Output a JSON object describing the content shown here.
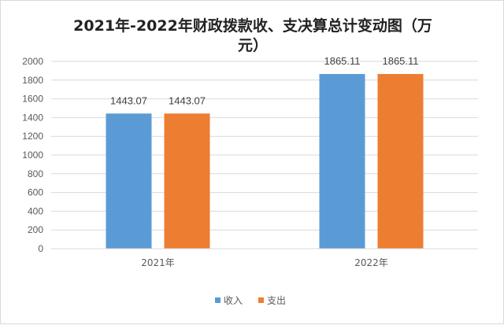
{
  "chart_data": {
    "type": "bar",
    "title_line1": "2021年-2022年财政拨款收、支决算总计变动图（万",
    "title_line2": "元）",
    "categories": [
      "2021年",
      "2022年"
    ],
    "series": [
      {
        "name": "收入",
        "values": [
          1443.07,
          1865.11
        ],
        "color": "#5B9BD5"
      },
      {
        "name": "支出",
        "values": [
          1443.07,
          1865.11
        ],
        "color": "#ED7D31"
      }
    ],
    "data_labels": [
      [
        "1443.07",
        "1865.11"
      ],
      [
        "1443.07",
        "1865.11"
      ]
    ],
    "yticks": [
      "0",
      "200",
      "400",
      "600",
      "800",
      "1000",
      "1200",
      "1400",
      "1600",
      "1800",
      "2000"
    ],
    "ylim": [
      0,
      2000
    ],
    "grid": true,
    "legend_position": "bottom"
  }
}
